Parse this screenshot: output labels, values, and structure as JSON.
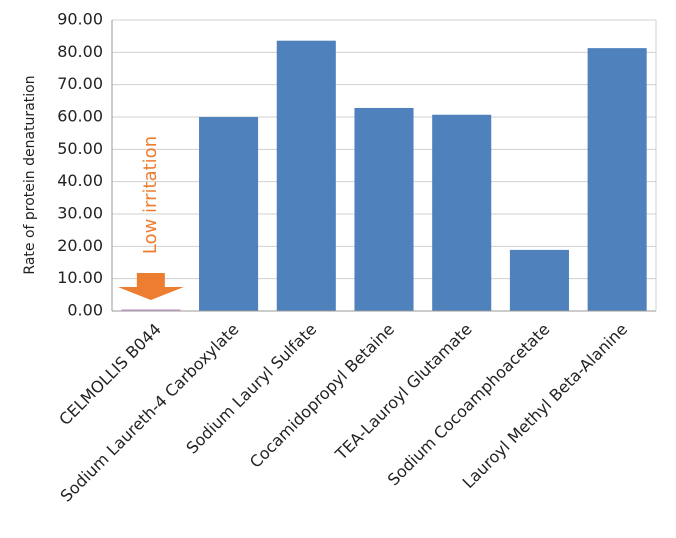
{
  "chart_data": {
    "type": "bar",
    "y_axis_label": "Rate of protein denaturation",
    "annotation": "Low irritation",
    "categories": [
      "CELMOLLIS B044",
      "Sodium Laureth-4 Carboxylate",
      "Sodium Lauryl Sulfate",
      "Cocamidopropyl Betaine",
      "TEA-Lauroyl Glutamate",
      "Sodium Cocoamphoacetate",
      "Lauroyl Methyl Beta-Alanine"
    ],
    "values": [
      0.5,
      60,
      83.6,
      62.8,
      60.7,
      18.9,
      81.3
    ],
    "colors": [
      "#c9a0c9",
      "#4f81bd",
      "#4f81bd",
      "#4f81bd",
      "#4f81bd",
      "#4f81bd",
      "#4f81bd"
    ],
    "annotation_color": "#ed7d31",
    "ylim": [
      0,
      90
    ],
    "yticks": [
      {
        "value": 0,
        "label": "0.00"
      },
      {
        "value": 10,
        "label": "10.00"
      },
      {
        "value": 20,
        "label": "20.00"
      },
      {
        "value": 30,
        "label": "30.00"
      },
      {
        "value": 40,
        "label": "40.00"
      },
      {
        "value": 50,
        "label": "50.00"
      },
      {
        "value": 60,
        "label": "60.00"
      },
      {
        "value": 70,
        "label": "70.00"
      },
      {
        "value": 80,
        "label": "80.00"
      },
      {
        "value": 90,
        "label": "90.00"
      }
    ],
    "grid": true
  }
}
